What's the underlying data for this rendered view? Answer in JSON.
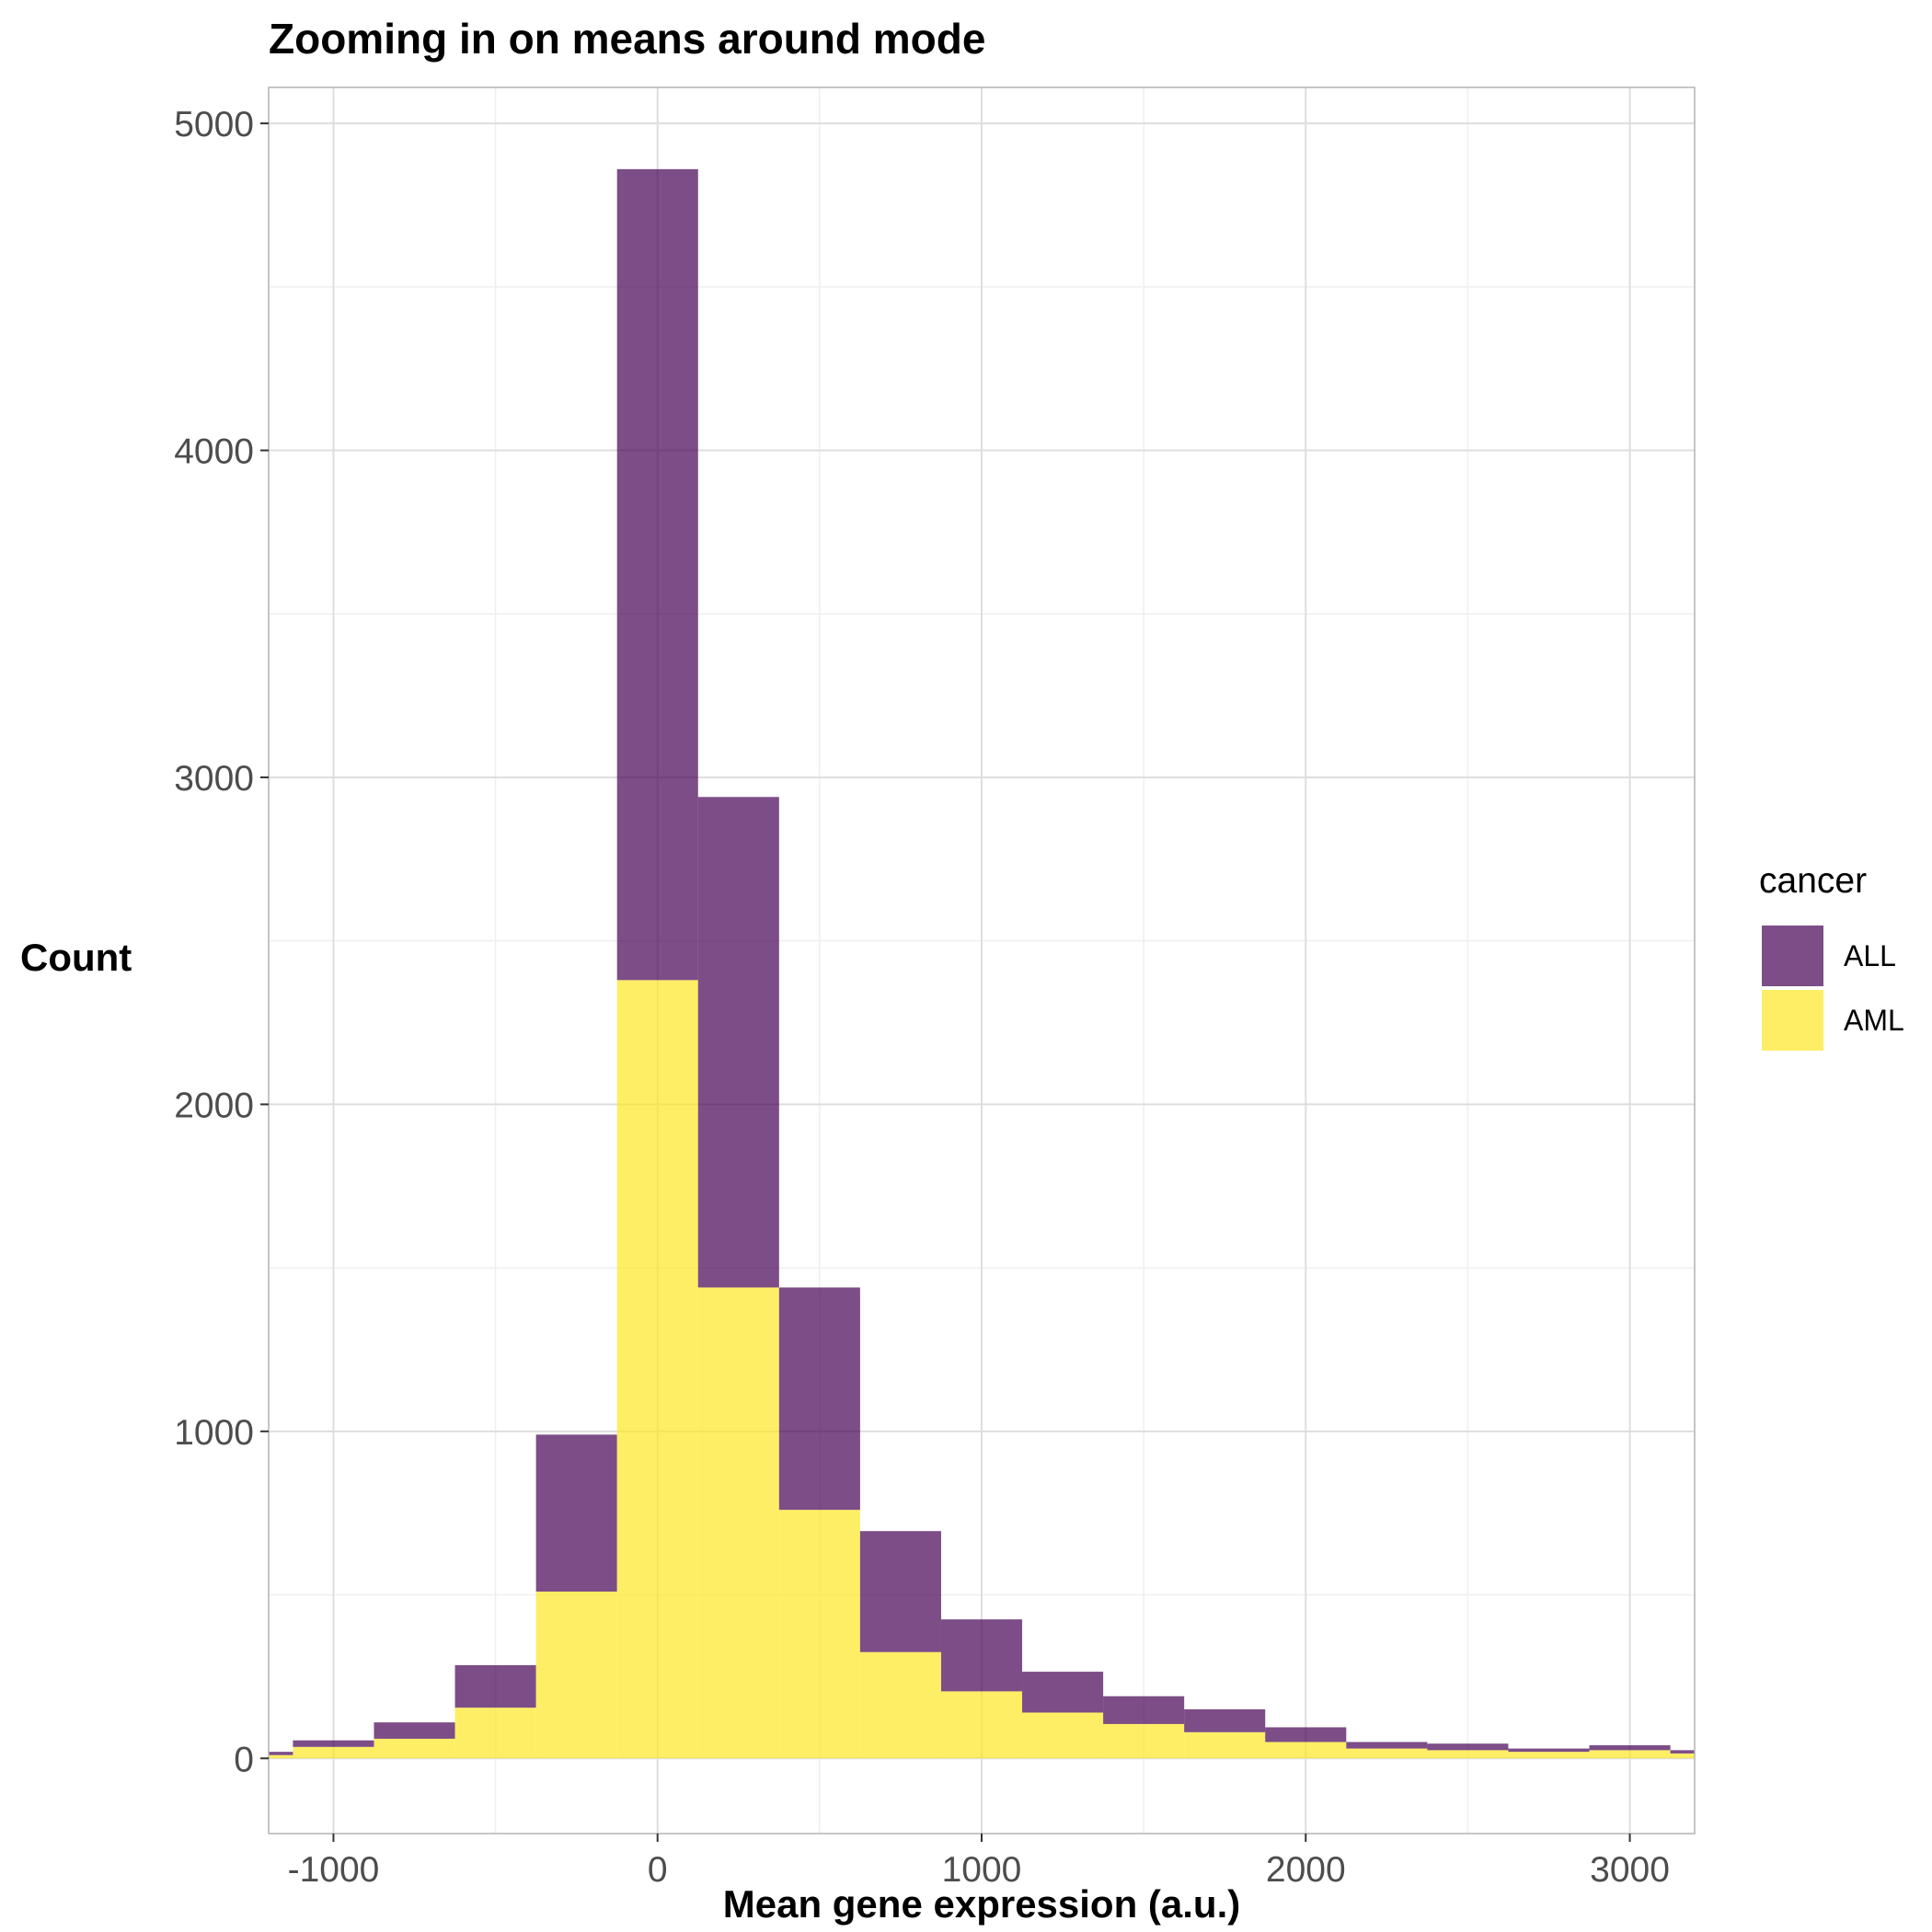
{
  "chart_data": {
    "type": "bar",
    "subtype": "stacked-histogram",
    "title": "Zooming in on means around mode",
    "xlabel": "Mean gene expression (a.u.)",
    "ylabel": "Count",
    "xlim": [
      -1200,
      3200
    ],
    "ylim": [
      -230,
      5110
    ],
    "x_ticks": [
      -1000,
      0,
      1000,
      2000,
      3000
    ],
    "x_tick_labels": [
      "-1000",
      "0",
      "1000",
      "2000",
      "3000"
    ],
    "y_ticks": [
      0,
      1000,
      2000,
      3000,
      4000,
      5000
    ],
    "y_tick_labels": [
      "0",
      "1000",
      "2000",
      "3000",
      "4000",
      "5000"
    ],
    "grid": true,
    "legend": {
      "title": "cancer",
      "position": "right"
    },
    "bin_width": 250,
    "bin_centers": [
      -1250,
      -1000,
      -750,
      -500,
      -250,
      0,
      250,
      500,
      750,
      1000,
      1250,
      1500,
      1750,
      2000,
      2250,
      2500,
      2750,
      3000,
      3250
    ],
    "series": [
      {
        "name": "ALL",
        "color": "#440154",
        "opacity": 0.7,
        "values": [
          10,
          20,
          50,
          130,
          480,
          2480,
          1500,
          680,
          370,
          220,
          125,
          85,
          70,
          45,
          20,
          20,
          10,
          15,
          10
        ]
      },
      {
        "name": "AML",
        "color": "#FDE725",
        "opacity": 0.7,
        "values": [
          10,
          35,
          60,
          155,
          510,
          2380,
          1440,
          760,
          325,
          205,
          140,
          105,
          80,
          50,
          30,
          25,
          20,
          25,
          15
        ]
      }
    ]
  }
}
